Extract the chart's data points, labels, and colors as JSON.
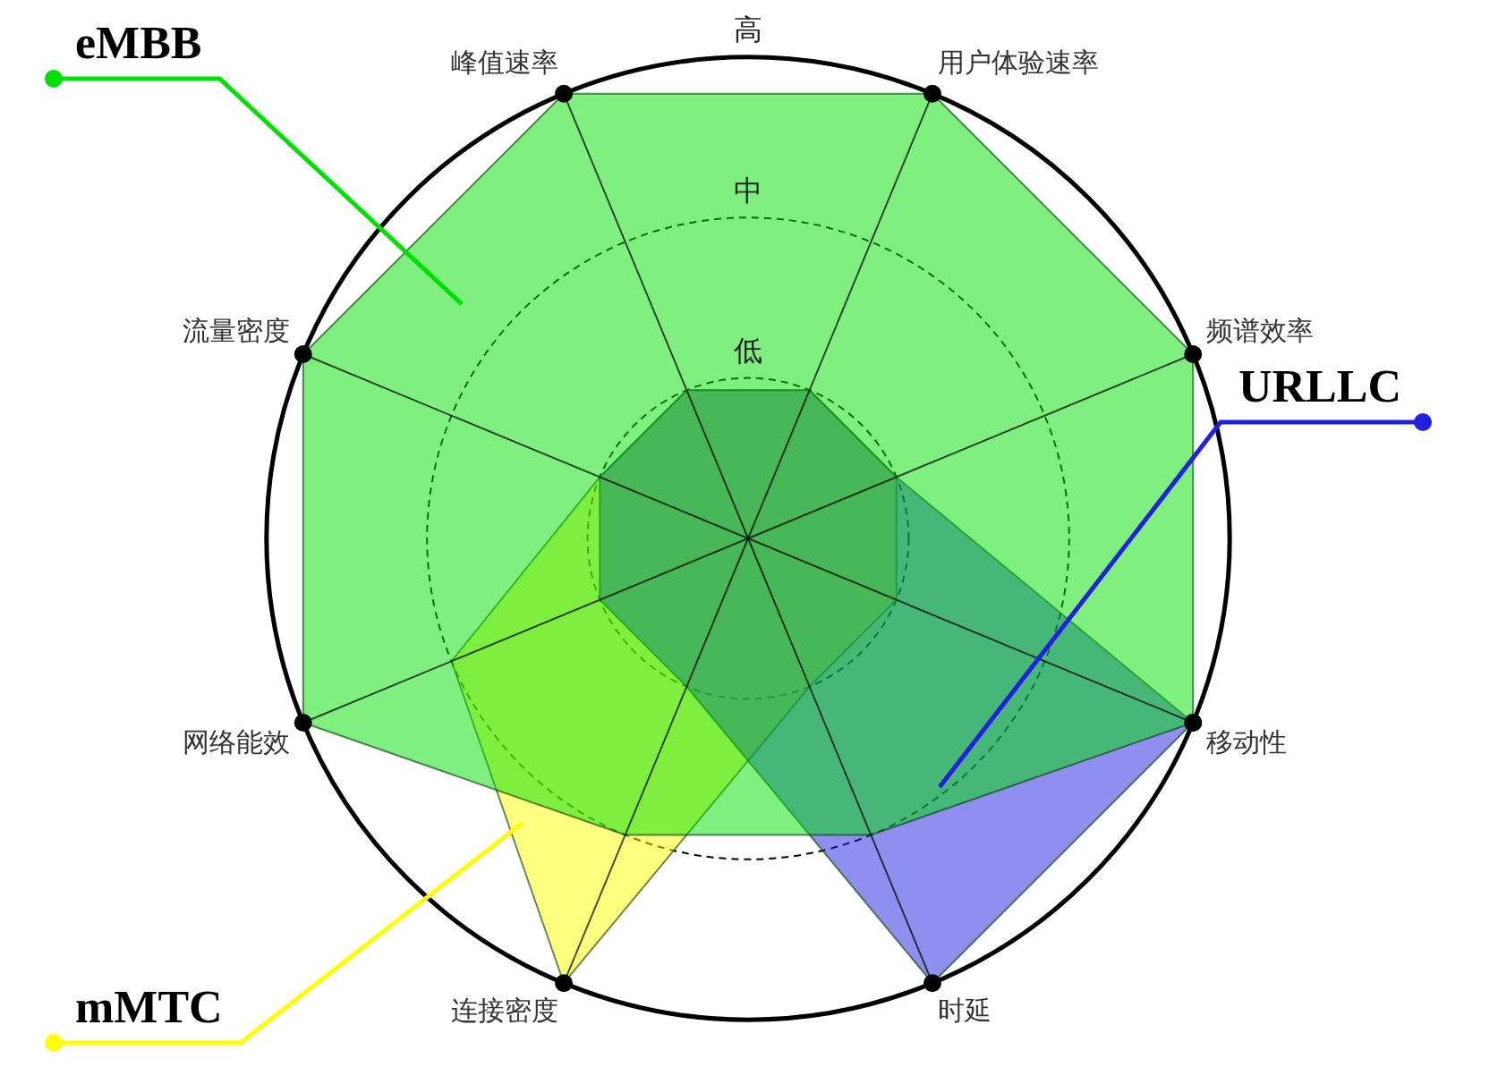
{
  "chart_data": {
    "type": "radar",
    "categories": [
      "峰值速率",
      "用户体验速率",
      "频谱效率",
      "移动性",
      "时延",
      "连接密度",
      "网络能效",
      "流量密度"
    ],
    "ylim": [
      0,
      3
    ],
    "yticks": [
      {
        "value": 1,
        "label": "低"
      },
      {
        "value": 2,
        "label": "中"
      },
      {
        "value": 3,
        "label": "高"
      }
    ],
    "grid": true,
    "legend": false,
    "marker": "circle",
    "series": [
      {
        "name": "eMBB",
        "color": "#00e000",
        "values": [
          3,
          3,
          3,
          3,
          2,
          2,
          3,
          3
        ]
      },
      {
        "name": "URLLC",
        "color": "#2020e0",
        "values": [
          1,
          1,
          1,
          3,
          3,
          1,
          1,
          1
        ]
      },
      {
        "name": "mMTC",
        "color": "#ffff00",
        "values": [
          1,
          1,
          1,
          1,
          1,
          3,
          2,
          1
        ]
      }
    ]
  }
}
